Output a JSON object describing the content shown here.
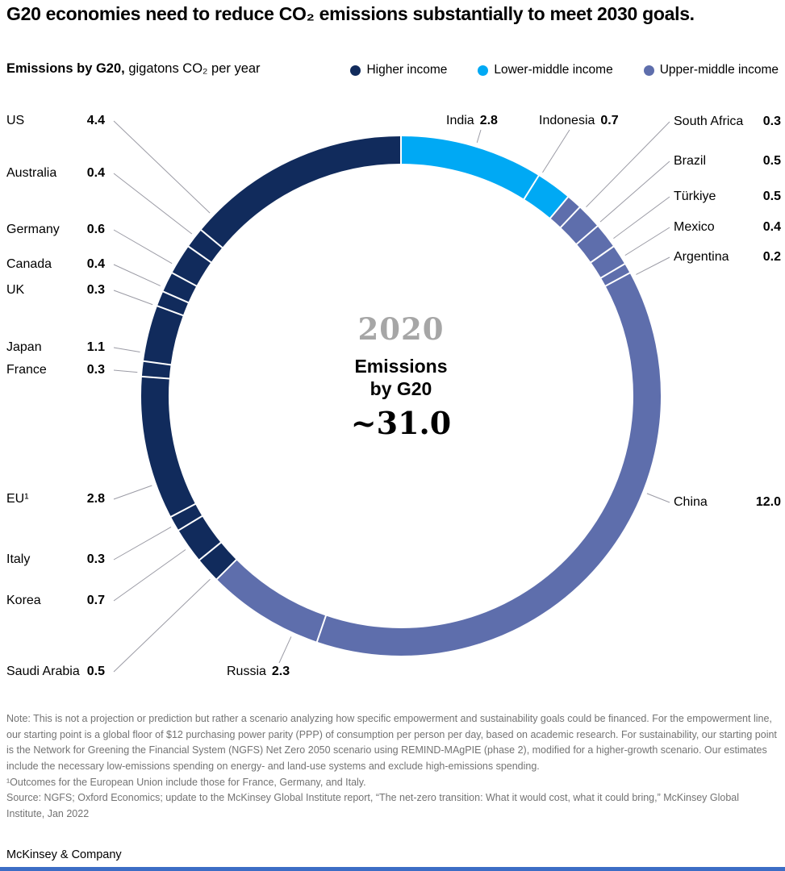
{
  "title": "G20 economies need to reduce CO₂ emissions substantially to meet 2030 goals.",
  "subtitle": {
    "bold": "Emissions by G20,",
    "rest": " gigatons CO₂ per year"
  },
  "legend": [
    {
      "key": "higher",
      "label": "Higher income",
      "color": "#112B5C"
    },
    {
      "key": "lower_middle",
      "label": "Lower-middle income",
      "color": "#00A9F4"
    },
    {
      "key": "upper_middle",
      "label": "Upper-middle income",
      "color": "#5E6EAC"
    }
  ],
  "center": {
    "year": "2020",
    "line1": "Emissions",
    "line2": "by G20",
    "total": "~31.0"
  },
  "chart_data": {
    "type": "pie",
    "subtype": "donut",
    "title": "Emissions by G20, gigatons CO₂ per year",
    "year": "2020",
    "center_total_label": "~31.0",
    "units": "gigatons CO₂ per year",
    "start_angle_deg": 0,
    "direction": "clockwise",
    "segments": [
      {
        "name": "India",
        "value": 2.8,
        "label": "2.8",
        "group": "lower_middle"
      },
      {
        "name": "Indonesia",
        "value": 0.7,
        "label": "0.7",
        "group": "lower_middle"
      },
      {
        "name": "South Africa",
        "value": 0.3,
        "label": "0.3",
        "group": "upper_middle"
      },
      {
        "name": "Brazil",
        "value": 0.5,
        "label": "0.5",
        "group": "upper_middle"
      },
      {
        "name": "Türkiye",
        "value": 0.5,
        "label": "0.5",
        "group": "upper_middle"
      },
      {
        "name": "Mexico",
        "value": 0.4,
        "label": "0.4",
        "group": "upper_middle"
      },
      {
        "name": "Argentina",
        "value": 0.2,
        "label": "0.2",
        "group": "upper_middle"
      },
      {
        "name": "China",
        "value": 12.0,
        "label": "12.0",
        "group": "upper_middle"
      },
      {
        "name": "Russia",
        "value": 2.3,
        "label": "2.3",
        "group": "upper_middle"
      },
      {
        "name": "Saudi Arabia",
        "value": 0.5,
        "label": "0.5",
        "group": "higher"
      },
      {
        "name": "Korea",
        "value": 0.7,
        "label": "0.7",
        "group": "higher"
      },
      {
        "name": "Italy",
        "value": 0.3,
        "label": "0.3",
        "group": "higher"
      },
      {
        "name": "EU¹",
        "value": 2.8,
        "label": "2.8",
        "group": "higher"
      },
      {
        "name": "France",
        "value": 0.3,
        "label": "0.3",
        "group": "higher"
      },
      {
        "name": "Japan",
        "value": 1.1,
        "label": "1.1",
        "group": "higher"
      },
      {
        "name": "UK",
        "value": 0.3,
        "label": "0.3",
        "group": "higher"
      },
      {
        "name": "Canada",
        "value": 0.4,
        "label": "0.4",
        "group": "higher"
      },
      {
        "name": "Germany",
        "value": 0.6,
        "label": "0.6",
        "group": "higher"
      },
      {
        "name": "Australia",
        "value": 0.4,
        "label": "0.4",
        "group": "higher"
      },
      {
        "name": "US",
        "value": 4.4,
        "label": "4.4",
        "group": "higher"
      }
    ]
  },
  "notes": {
    "note": "Note: This is not a projection or prediction but rather a scenario analyzing how specific empowerment and sustainability goals could be financed. For the empowerment line, our starting point is a global floor of $12 purchasing power parity (PPP) of consumption per person per day, based on academic research. For sustainability, our starting point is the Network for Greening the Financial System (NGFS) Net Zero 2050 scenario using REMIND-MAgPIE (phase 2), modified for a higher-growth scenario. Our estimates include the necessary low-emissions spending on energy- and land-use systems and exclude high-emissions spending.",
    "footnote": "¹Outcomes for the European Union include those for France, Germany, and Italy.",
    "source": "Source: NGFS; Oxford Economics; update to the McKinsey Global Institute report, “The net-zero transition: What it would cost, what it could bring,” McKinsey Global Institute, Jan 2022"
  },
  "footer": "McKinsey & Company",
  "colors": {
    "leader_line": "#9B9BA5",
    "center_year_gray": "#A6A6A6",
    "note_gray": "#737373",
    "bottom_bar_blue": "#3C6DC5"
  }
}
